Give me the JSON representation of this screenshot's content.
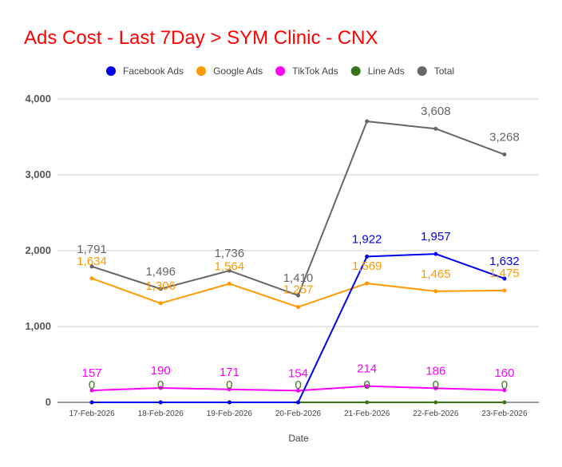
{
  "chart_data": {
    "type": "line",
    "title": "Ads Cost - Last 7Day > SYM Clinic - CNX",
    "title_color": "#ff0000",
    "xlabel": "Date",
    "ylabel": "",
    "ylim": [
      0,
      4000
    ],
    "yticks": [
      0,
      1000,
      2000,
      3000,
      4000
    ],
    "ytick_labels": [
      "0",
      "1,000",
      "2,000",
      "3,000",
      "4,000"
    ],
    "grid": true,
    "legend_position": "top",
    "categories": [
      "17-Feb-2026",
      "18-Feb-2026",
      "19-Feb-2026",
      "20-Feb-2026",
      "21-Feb-2026",
      "22-Feb-2026",
      "23-Feb-2026"
    ],
    "series": [
      {
        "name": "Facebook Ads",
        "color": "#0000ee",
        "values": [
          0,
          0,
          0,
          0,
          1922,
          1957,
          1632
        ],
        "labels": [
          "",
          "",
          "",
          "",
          "1,922",
          "1,957",
          "1,632"
        ]
      },
      {
        "name": "Google Ads",
        "color": "#ff9900",
        "values": [
          1634,
          1306,
          1564,
          1257,
          1569,
          1465,
          1475
        ],
        "labels": [
          "1,634",
          "1,306",
          "1,564",
          "1,257",
          "1,569",
          "1,465",
          "1,475"
        ]
      },
      {
        "name": "TikTok Ads",
        "color": "#ff00ff",
        "values": [
          157,
          190,
          171,
          154,
          214,
          186,
          160
        ],
        "labels": [
          "157",
          "190",
          "171",
          "154",
          "214",
          "186",
          "160"
        ]
      },
      {
        "name": "Line Ads",
        "color": "#38761d",
        "values": [
          0,
          0,
          0,
          0,
          0,
          0,
          0
        ],
        "labels": [
          "0",
          "0",
          "0",
          "0",
          "0",
          "0",
          "0"
        ]
      },
      {
        "name": "Total",
        "color": "#666666",
        "values": [
          1791,
          1496,
          1736,
          1410,
          3705,
          3608,
          3268
        ],
        "labels": [
          "1,791",
          "1,496",
          "1,736",
          "1,410",
          "",
          "3,608",
          "3,268"
        ]
      }
    ]
  }
}
